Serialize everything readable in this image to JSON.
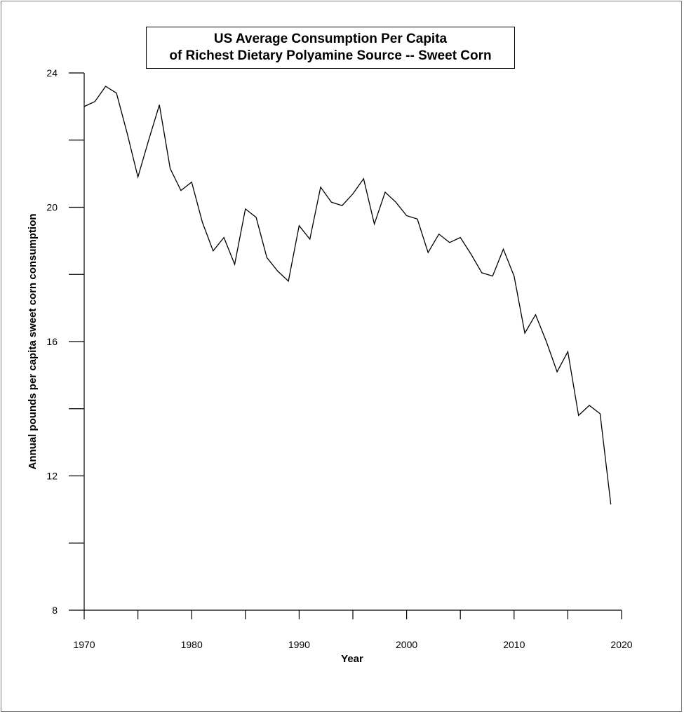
{
  "chart_data": {
    "type": "line",
    "title": "US Average Consumption Per Capita",
    "subtitle": "of Richest Dietary Polyamine Source -- Sweet Corn",
    "xlabel": "Year",
    "ylabel": "Annual pounds per capita sweet corn consumption",
    "xlim": [
      1970,
      2020
    ],
    "ylim": [
      8,
      24
    ],
    "x_ticks": [
      1970,
      1975,
      1980,
      1985,
      1990,
      1995,
      2000,
      2005,
      2010,
      2015,
      2020
    ],
    "x_tick_labels": [
      "1970",
      "1980",
      "1990",
      "2000",
      "2010",
      "2020"
    ],
    "y_ticks": [
      8,
      10,
      12,
      14,
      16,
      18,
      20,
      22,
      24
    ],
    "y_tick_labels": [
      "8",
      "12",
      "16",
      "20",
      "24"
    ],
    "grid": false,
    "series": [
      {
        "x": [
          1970,
          1971,
          1972,
          1973,
          1974,
          1975,
          1976,
          1977,
          1978,
          1979,
          1980,
          1981,
          1982,
          1983,
          1984,
          1985,
          1986,
          1987,
          1988,
          1989,
          1990,
          1991,
          1992,
          1993,
          1994,
          1995,
          1996,
          1997,
          1998,
          1999,
          2000,
          2001,
          2002,
          2003,
          2004,
          2005,
          2006,
          2007,
          2008,
          2009,
          2010,
          2011,
          2012,
          2013,
          2014,
          2015,
          2016,
          2017,
          2018,
          2019
        ],
        "values": [
          23.0,
          23.15,
          23.6,
          23.4,
          22.2,
          20.9,
          22.0,
          23.05,
          21.15,
          20.5,
          20.75,
          19.55,
          18.7,
          19.1,
          18.3,
          19.95,
          19.7,
          18.5,
          18.1,
          17.8,
          19.45,
          19.05,
          20.6,
          20.15,
          20.05,
          20.4,
          20.85,
          19.5,
          20.45,
          20.15,
          19.75,
          19.65,
          18.65,
          19.2,
          18.95,
          19.1,
          18.6,
          18.05,
          17.95,
          18.75,
          17.95,
          16.25,
          16.8,
          16.0,
          15.1,
          15.7,
          13.8,
          14.1,
          13.85,
          11.15
        ]
      }
    ]
  },
  "colors": {
    "line": "#000000",
    "axis": "#000000",
    "frame": "#7a7a7a"
  }
}
